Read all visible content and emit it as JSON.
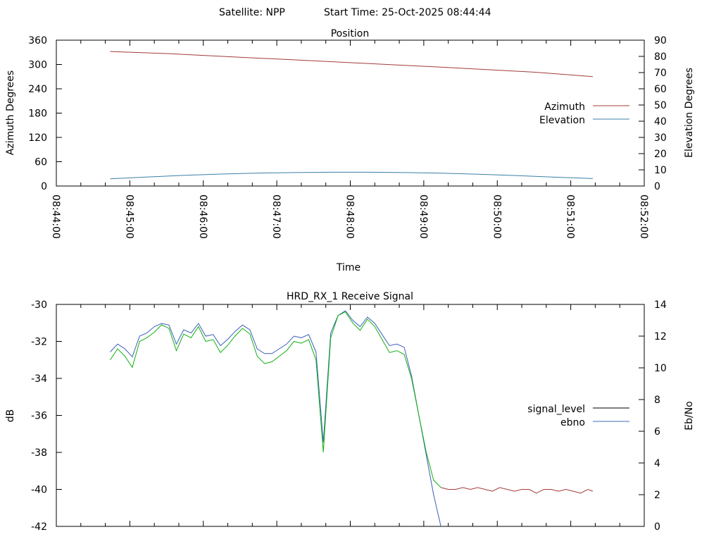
{
  "header": {
    "satellite_label": "Satellite: NPP",
    "start_time_label": "Start Time: 25-Oct-2025 08:44:44"
  },
  "colors": {
    "azimuth": "#a33b3b",
    "elevation": "#3b7fa8",
    "signal_level_legend": "#000000",
    "ebno_legend": "#3b6fb0",
    "signal_level_trace": "#10b010",
    "signal_level_tail": "#a33b3b",
    "ebno_trace": "#3b5fb8"
  },
  "chart_data": [
    {
      "type": "line",
      "title": "Position",
      "xlabel": "Time",
      "ylabel": "Azimuth Degrees",
      "y2label": "Elevation Degrees",
      "xlim": [
        "08:44:00",
        "08:52:00"
      ],
      "x_ticks": [
        "08:44:00",
        "08:45:00",
        "08:46:00",
        "08:47:00",
        "08:48:00",
        "08:49:00",
        "08:50:00",
        "08:51:00",
        "08:52:00"
      ],
      "ylim": [
        0,
        360
      ],
      "y_ticks": [
        0,
        60,
        120,
        180,
        240,
        300,
        360
      ],
      "y2lim": [
        0,
        90
      ],
      "y2_ticks": [
        0,
        10,
        20,
        30,
        40,
        50,
        60,
        70,
        80,
        90
      ],
      "legend_position": "right",
      "grid": false,
      "series": [
        {
          "name": "Azimuth",
          "axis": "left",
          "x": [
            "08:44:44",
            "08:45:30",
            "08:46:30",
            "08:47:30",
            "08:48:30",
            "08:49:30",
            "08:50:30",
            "08:51:18"
          ],
          "values": [
            332,
            327,
            318,
            309,
            300,
            291,
            281,
            270
          ]
        },
        {
          "name": "Elevation",
          "axis": "right",
          "x": [
            "08:44:44",
            "08:45:15",
            "08:45:45",
            "08:46:15",
            "08:46:45",
            "08:47:15",
            "08:47:45",
            "08:48:15",
            "08:48:45",
            "08:49:15",
            "08:49:45",
            "08:50:15",
            "08:50:45",
            "08:51:18"
          ],
          "values": [
            4.5,
            5.6,
            6.6,
            7.4,
            8.0,
            8.3,
            8.5,
            8.5,
            8.3,
            7.9,
            7.3,
            6.5,
            5.5,
            4.6
          ]
        }
      ]
    },
    {
      "type": "line",
      "title": "HRD_RX_1 Receive Signal",
      "ylabel": "dB",
      "y2label": "Eb/No",
      "xlim": [
        "08:44:00",
        "08:52:00"
      ],
      "ylim": [
        -42,
        -30
      ],
      "y_ticks": [
        -42,
        -40,
        -38,
        -36,
        -34,
        -32,
        -30
      ],
      "y2lim": [
        0,
        14
      ],
      "y2_ticks": [
        0,
        2,
        4,
        6,
        8,
        10,
        12,
        14
      ],
      "legend_position": "right",
      "grid": false,
      "series": [
        {
          "name": "signal_level",
          "axis": "left",
          "x": [
            "08:44:44",
            "08:44:50",
            "08:44:56",
            "08:45:02",
            "08:45:08",
            "08:45:14",
            "08:45:20",
            "08:45:26",
            "08:45:32",
            "08:45:38",
            "08:45:44",
            "08:45:50",
            "08:45:56",
            "08:46:02",
            "08:46:08",
            "08:46:14",
            "08:46:20",
            "08:46:26",
            "08:46:32",
            "08:46:38",
            "08:46:44",
            "08:46:50",
            "08:46:56",
            "08:47:02",
            "08:47:08",
            "08:47:14",
            "08:47:20",
            "08:47:26",
            "08:47:32",
            "08:47:38",
            "08:47:44",
            "08:47:50",
            "08:47:56",
            "08:48:02",
            "08:48:08",
            "08:48:14",
            "08:48:20",
            "08:48:26",
            "08:48:32",
            "08:48:38",
            "08:48:44",
            "08:48:50",
            "08:48:56",
            "08:49:02",
            "08:49:08",
            "08:49:14",
            "08:49:20",
            "08:49:26",
            "08:49:32",
            "08:49:38",
            "08:49:44",
            "08:49:50",
            "08:49:56",
            "08:50:02",
            "08:50:08",
            "08:50:14",
            "08:50:20",
            "08:50:26",
            "08:50:32",
            "08:50:38",
            "08:50:44",
            "08:50:50",
            "08:50:56",
            "08:51:02",
            "08:51:08",
            "08:51:14",
            "08:51:18"
          ],
          "values": [
            -33.0,
            -32.4,
            -32.8,
            -33.4,
            -32.0,
            -31.8,
            -31.5,
            -31.1,
            -31.3,
            -32.5,
            -31.6,
            -31.8,
            -31.2,
            -32.0,
            -31.9,
            -32.6,
            -32.2,
            -31.7,
            -31.3,
            -31.6,
            -32.8,
            -33.2,
            -33.1,
            -32.8,
            -32.5,
            -32.0,
            -32.1,
            -31.9,
            -33.0,
            -38.0,
            -31.8,
            -30.6,
            -30.4,
            -31.0,
            -31.4,
            -30.8,
            -31.2,
            -31.9,
            -32.6,
            -32.5,
            -32.7,
            -34.0,
            -36.0,
            -38.0,
            -39.5,
            -39.9,
            -40.0,
            -40.0,
            -39.9,
            -40.0,
            -39.9,
            -40.0,
            -40.1,
            -39.9,
            -40.0,
            -40.1,
            -40.0,
            -40.0,
            -40.2,
            -40.0,
            -40.0,
            -40.1,
            -40.0,
            -40.1,
            -40.2,
            -40.0,
            -40.1
          ]
        },
        {
          "name": "ebno",
          "axis": "right",
          "x": [
            "08:44:44",
            "08:44:50",
            "08:44:56",
            "08:45:02",
            "08:45:08",
            "08:45:14",
            "08:45:20",
            "08:45:26",
            "08:45:32",
            "08:45:38",
            "08:45:44",
            "08:45:50",
            "08:45:56",
            "08:46:02",
            "08:46:08",
            "08:46:14",
            "08:46:20",
            "08:46:26",
            "08:46:32",
            "08:46:38",
            "08:46:44",
            "08:46:50",
            "08:46:56",
            "08:47:02",
            "08:47:08",
            "08:47:14",
            "08:47:20",
            "08:47:26",
            "08:47:32",
            "08:47:38",
            "08:47:44",
            "08:47:50",
            "08:47:56",
            "08:48:02",
            "08:48:08",
            "08:48:14",
            "08:48:20",
            "08:48:26",
            "08:48:32",
            "08:48:38",
            "08:48:44",
            "08:48:50",
            "08:48:56",
            "08:49:02",
            "08:49:08",
            "08:49:14"
          ],
          "values": [
            11.0,
            11.5,
            11.2,
            10.7,
            12.0,
            12.2,
            12.6,
            12.8,
            12.7,
            11.5,
            12.4,
            12.2,
            12.8,
            12.0,
            12.1,
            11.4,
            11.8,
            12.3,
            12.7,
            12.4,
            11.2,
            10.9,
            10.9,
            11.2,
            11.5,
            12.0,
            11.9,
            12.1,
            11.0,
            5.3,
            12.2,
            13.3,
            13.6,
            13.0,
            12.6,
            13.2,
            12.8,
            12.1,
            11.4,
            11.5,
            11.3,
            9.5,
            7.0,
            4.5,
            2.0,
            0.0
          ]
        }
      ]
    }
  ]
}
